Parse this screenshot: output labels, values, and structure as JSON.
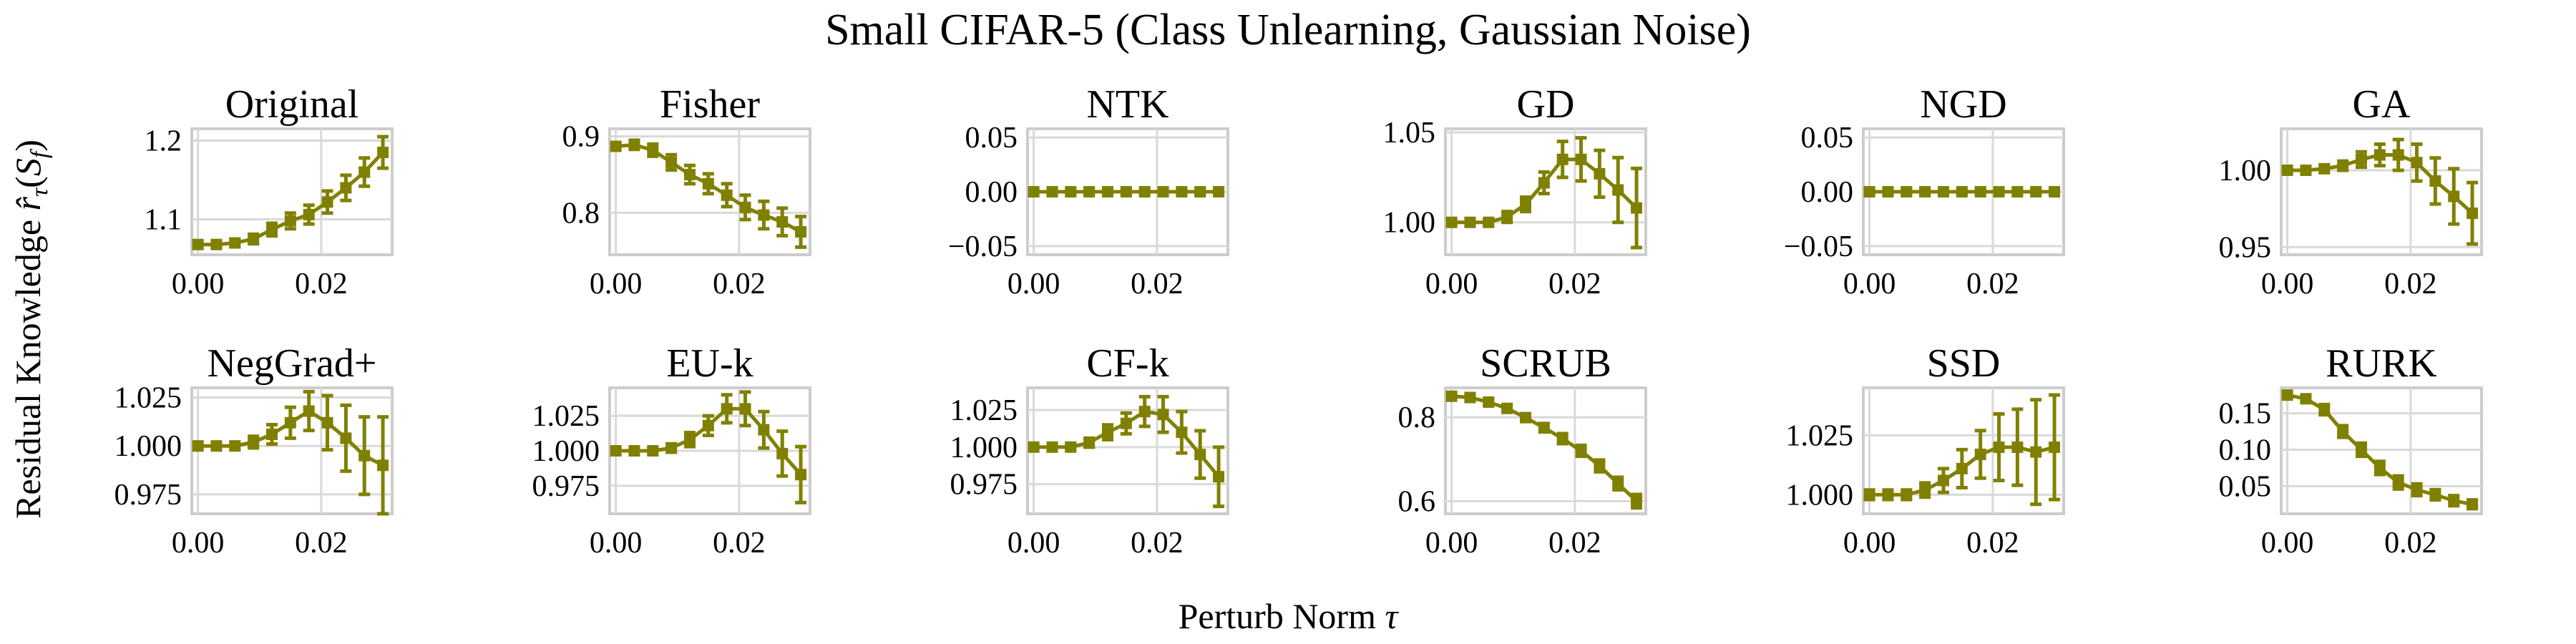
{
  "figure": {
    "title": "Small CIFAR-5 (Class Unlearning, Gaussian Noise)",
    "xlabel": "Perturb Norm τ",
    "ylabel": "Residual Knowledge r̂τ(Sf)",
    "series_color": "#808000"
  },
  "chart_data": [
    {
      "type": "line",
      "title": "Original",
      "x": [
        0.0,
        0.003,
        0.006,
        0.009,
        0.012,
        0.015,
        0.018,
        0.021,
        0.024,
        0.027,
        0.03
      ],
      "y": [
        1.068,
        1.068,
        1.07,
        1.075,
        1.087,
        1.098,
        1.106,
        1.122,
        1.14,
        1.16,
        1.185
      ],
      "err": [
        0.004,
        0.004,
        0.005,
        0.006,
        0.008,
        0.01,
        0.012,
        0.014,
        0.016,
        0.018,
        0.02
      ],
      "xlim": [
        -0.001,
        0.0315
      ],
      "ylim": [
        1.055,
        1.215
      ],
      "yticks": [
        1.1,
        1.2
      ],
      "ytick_labels": [
        "1.1",
        "1.2"
      ],
      "xticks": [
        0.0,
        0.02
      ],
      "xtick_labels": [
        "0.00",
        "0.02"
      ]
    },
    {
      "type": "line",
      "title": "Fisher",
      "x": [
        0.0,
        0.003,
        0.006,
        0.009,
        0.012,
        0.015,
        0.018,
        0.021,
        0.024,
        0.027,
        0.03
      ],
      "y": [
        0.887,
        0.889,
        0.882,
        0.866,
        0.85,
        0.838,
        0.823,
        0.807,
        0.797,
        0.788,
        0.775
      ],
      "err": [
        0.005,
        0.006,
        0.008,
        0.01,
        0.012,
        0.013,
        0.015,
        0.016,
        0.018,
        0.018,
        0.02
      ],
      "xlim": [
        -0.001,
        0.0315
      ],
      "ylim": [
        0.745,
        0.91
      ],
      "yticks": [
        0.8,
        0.9
      ],
      "ytick_labels": [
        "0.8",
        "0.9"
      ],
      "xticks": [
        0.0,
        0.02
      ],
      "xtick_labels": [
        "0.00",
        "0.02"
      ]
    },
    {
      "type": "line",
      "title": "NTK",
      "x": [
        0.0,
        0.003,
        0.006,
        0.009,
        0.012,
        0.015,
        0.018,
        0.021,
        0.024,
        0.027,
        0.03
      ],
      "y": [
        0,
        0,
        0,
        0,
        0,
        0,
        0,
        0,
        0,
        0,
        0
      ],
      "err": [
        0.002,
        0.002,
        0.002,
        0.002,
        0.002,
        0.002,
        0.002,
        0.002,
        0.002,
        0.002,
        0.002
      ],
      "xlim": [
        -0.001,
        0.0315
      ],
      "ylim": [
        -0.058,
        0.058
      ],
      "yticks": [
        -0.05,
        0.0,
        0.05
      ],
      "ytick_labels": [
        "−0.05",
        "0.00",
        "0.05"
      ],
      "xticks": [
        0.0,
        0.02
      ],
      "xtick_labels": [
        "0.00",
        "0.02"
      ]
    },
    {
      "type": "line",
      "title": "GD",
      "x": [
        0.0,
        0.003,
        0.006,
        0.009,
        0.012,
        0.015,
        0.018,
        0.021,
        0.024,
        0.027,
        0.03
      ],
      "y": [
        1.0,
        1.0,
        1.0,
        1.003,
        1.01,
        1.022,
        1.035,
        1.035,
        1.027,
        1.018,
        1.008
      ],
      "err": [
        0.002,
        0.002,
        0.002,
        0.003,
        0.004,
        0.006,
        0.01,
        0.012,
        0.013,
        0.018,
        0.022
      ],
      "xlim": [
        -0.001,
        0.0315
      ],
      "ylim": [
        0.982,
        1.052
      ],
      "yticks": [
        1.0,
        1.05
      ],
      "ytick_labels": [
        "1.00",
        "1.05"
      ],
      "xticks": [
        0.0,
        0.02
      ],
      "xtick_labels": [
        "0.00",
        "0.02"
      ]
    },
    {
      "type": "line",
      "title": "NGD",
      "x": [
        0.0,
        0.003,
        0.006,
        0.009,
        0.012,
        0.015,
        0.018,
        0.021,
        0.024,
        0.027,
        0.03
      ],
      "y": [
        0,
        0,
        0,
        0,
        0,
        0,
        0,
        0,
        0,
        0,
        0
      ],
      "err": [
        0.002,
        0.002,
        0.002,
        0.002,
        0.002,
        0.002,
        0.002,
        0.002,
        0.002,
        0.002,
        0.002
      ],
      "xlim": [
        -0.001,
        0.0315
      ],
      "ylim": [
        -0.058,
        0.058
      ],
      "yticks": [
        -0.05,
        0.0,
        0.05
      ],
      "ytick_labels": [
        "−0.05",
        "0.00",
        "0.05"
      ],
      "xticks": [
        0.0,
        0.02
      ],
      "xtick_labels": [
        "0.00",
        "0.02"
      ]
    },
    {
      "type": "line",
      "title": "GA",
      "x": [
        0.0,
        0.003,
        0.006,
        0.009,
        0.012,
        0.015,
        0.018,
        0.021,
        0.024,
        0.027,
        0.03
      ],
      "y": [
        1.0,
        1.0,
        1.001,
        1.003,
        1.007,
        1.01,
        1.01,
        1.005,
        0.993,
        0.983,
        0.972
      ],
      "err": [
        0.002,
        0.002,
        0.002,
        0.003,
        0.005,
        0.007,
        0.01,
        0.012,
        0.015,
        0.018,
        0.02
      ],
      "xlim": [
        -0.001,
        0.0315
      ],
      "ylim": [
        0.945,
        1.027
      ],
      "yticks": [
        0.95,
        1.0
      ],
      "ytick_labels": [
        "0.95",
        "1.00"
      ],
      "xticks": [
        0.0,
        0.02
      ],
      "xtick_labels": [
        "0.00",
        "0.02"
      ]
    },
    {
      "type": "line",
      "title": "NegGrad+",
      "x": [
        0.0,
        0.003,
        0.006,
        0.009,
        0.012,
        0.015,
        0.018,
        0.021,
        0.024,
        0.027,
        0.03
      ],
      "y": [
        1.0,
        1.0,
        1.0,
        1.002,
        1.006,
        1.012,
        1.018,
        1.012,
        1.004,
        0.995,
        0.99
      ],
      "err": [
        0.002,
        0.002,
        0.002,
        0.003,
        0.005,
        0.008,
        0.01,
        0.014,
        0.017,
        0.02,
        0.025
      ],
      "xlim": [
        -0.001,
        0.0315
      ],
      "ylim": [
        0.965,
        1.03
      ],
      "yticks": [
        0.975,
        1.0,
        1.025
      ],
      "ytick_labels": [
        "0.975",
        "1.000",
        "1.025"
      ],
      "xticks": [
        0.0,
        0.02
      ],
      "xtick_labels": [
        "0.00",
        "0.02"
      ]
    },
    {
      "type": "line",
      "title": "EU-k",
      "x": [
        0.0,
        0.003,
        0.006,
        0.009,
        0.012,
        0.015,
        0.018,
        0.021,
        0.024,
        0.027,
        0.03
      ],
      "y": [
        1.0,
        1.0,
        1.0,
        1.002,
        1.008,
        1.018,
        1.03,
        1.03,
        1.015,
        0.998,
        0.983
      ],
      "err": [
        0.002,
        0.002,
        0.002,
        0.003,
        0.005,
        0.007,
        0.01,
        0.012,
        0.013,
        0.016,
        0.02
      ],
      "xlim": [
        -0.001,
        0.0315
      ],
      "ylim": [
        0.955,
        1.045
      ],
      "yticks": [
        0.975,
        1.0,
        1.025
      ],
      "ytick_labels": [
        "0.975",
        "1.000",
        "1.025"
      ],
      "xticks": [
        0.0,
        0.02
      ],
      "xtick_labels": [
        "0.00",
        "0.02"
      ]
    },
    {
      "type": "line",
      "title": "CF-k",
      "x": [
        0.0,
        0.003,
        0.006,
        0.009,
        0.012,
        0.015,
        0.018,
        0.021,
        0.024,
        0.027,
        0.03
      ],
      "y": [
        1.0,
        1.0,
        1.0,
        1.003,
        1.01,
        1.016,
        1.024,
        1.022,
        1.01,
        0.995,
        0.98
      ],
      "err": [
        0.002,
        0.002,
        0.002,
        0.003,
        0.005,
        0.007,
        0.01,
        0.012,
        0.014,
        0.016,
        0.02
      ],
      "xlim": [
        -0.001,
        0.0315
      ],
      "ylim": [
        0.955,
        1.04
      ],
      "yticks": [
        0.975,
        1.0,
        1.025
      ],
      "ytick_labels": [
        "0.975",
        "1.000",
        "1.025"
      ],
      "xticks": [
        0.0,
        0.02
      ],
      "xtick_labels": [
        "0.00",
        "0.02"
      ]
    },
    {
      "type": "line",
      "title": "SCRUB",
      "x": [
        0.0,
        0.003,
        0.006,
        0.009,
        0.012,
        0.015,
        0.018,
        0.021,
        0.024,
        0.027,
        0.03
      ],
      "y": [
        0.85,
        0.847,
        0.836,
        0.821,
        0.799,
        0.775,
        0.749,
        0.72,
        0.684,
        0.642,
        0.6
      ],
      "err": [
        0.006,
        0.007,
        0.008,
        0.008,
        0.009,
        0.01,
        0.012,
        0.013,
        0.014,
        0.015,
        0.016
      ],
      "xlim": [
        -0.001,
        0.0315
      ],
      "ylim": [
        0.57,
        0.87
      ],
      "yticks": [
        0.6,
        0.8
      ],
      "ytick_labels": [
        "0.6",
        "0.8"
      ],
      "xticks": [
        0.0,
        0.02
      ],
      "xtick_labels": [
        "0.00",
        "0.02"
      ]
    },
    {
      "type": "line",
      "title": "SSD",
      "x": [
        0.0,
        0.003,
        0.006,
        0.009,
        0.012,
        0.015,
        0.018,
        0.021,
        0.024,
        0.027,
        0.03
      ],
      "y": [
        1.0,
        1.0,
        1.0,
        1.002,
        1.006,
        1.011,
        1.017,
        1.02,
        1.02,
        1.018,
        1.02
      ],
      "err": [
        0.002,
        0.002,
        0.002,
        0.003,
        0.005,
        0.008,
        0.01,
        0.014,
        0.016,
        0.022,
        0.022
      ],
      "xlim": [
        -0.001,
        0.0315
      ],
      "ylim": [
        0.992,
        1.045
      ],
      "yticks": [
        1.0,
        1.025
      ],
      "ytick_labels": [
        "1.000",
        "1.025"
      ],
      "xticks": [
        0.0,
        0.02
      ],
      "xtick_labels": [
        "0.00",
        "0.02"
      ]
    },
    {
      "type": "line",
      "title": "RURK",
      "x": [
        0.0,
        0.003,
        0.006,
        0.009,
        0.012,
        0.015,
        0.018,
        0.021,
        0.024,
        0.027,
        0.03
      ],
      "y": [
        0.175,
        0.17,
        0.155,
        0.125,
        0.1,
        0.075,
        0.055,
        0.045,
        0.038,
        0.03,
        0.025
      ],
      "err": [
        0.004,
        0.005,
        0.007,
        0.008,
        0.009,
        0.009,
        0.009,
        0.008,
        0.007,
        0.007,
        0.006
      ],
      "xlim": [
        -0.001,
        0.0315
      ],
      "ylim": [
        0.012,
        0.185
      ],
      "yticks": [
        0.05,
        0.1,
        0.15
      ],
      "ytick_labels": [
        "0.05",
        "0.10",
        "0.15"
      ],
      "xticks": [
        0.0,
        0.02
      ],
      "xtick_labels": [
        "0.00",
        "0.02"
      ]
    }
  ]
}
